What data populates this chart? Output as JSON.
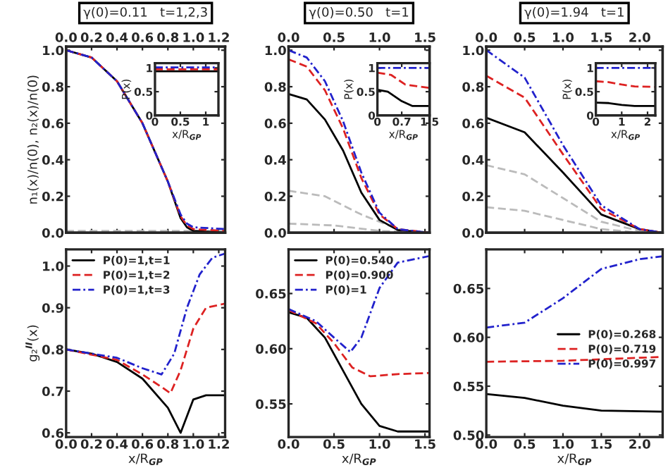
{
  "chart_data": [
    {
      "type": "line",
      "title": "γ(0)=0.11   t=1,2,3",
      "ylabel": "n₁(x)/n(0), n₂(x)/n(0)",
      "tick_labels": "y",
      "xlim": [
        0,
        1.25
      ],
      "xticks": [
        {
          "value": 0,
          "label": null
        },
        {
          "value": 0.2,
          "label": null
        },
        {
          "value": 0.4,
          "label": null
        },
        {
          "value": 0.6,
          "label": null
        },
        {
          "value": 0.8,
          "label": null
        },
        {
          "value": 1,
          "label": null
        },
        {
          "value": 1.2,
          "label": null
        }
      ],
      "x2lim": [
        0,
        1.25
      ],
      "x2ticks": [
        {
          "value": 0,
          "label": "0.0"
        },
        0.2,
        0.4,
        0.6,
        0.8,
        {
          "value": 1,
          "label": "1.0"
        },
        {
          "value": 1.2,
          "label": "1.2"
        }
      ],
      "ylim": [
        0,
        1.02
      ],
      "yticks": [
        {
          "value": 0,
          "label": "0.0"
        },
        0.2,
        0.4,
        0.6,
        0.8,
        {
          "value": 1,
          "label": "1.0"
        }
      ],
      "grid": false,
      "legend": false,
      "series": [
        {
          "color": "#bbbbbb",
          "line_style": "dashed",
          "x": [
            0,
            0.4,
            0.8,
            1.25
          ],
          "values": [
            0.01,
            0.01,
            0.01,
            0.01
          ]
        },
        {
          "color": "#000000",
          "line_style": "solid",
          "x": [
            0,
            0.2,
            0.4,
            0.6,
            0.8,
            0.9,
            0.95,
            1.0,
            1.25
          ],
          "values": [
            1.0,
            0.96,
            0.83,
            0.6,
            0.28,
            0.08,
            0.03,
            0.01,
            0.0
          ]
        },
        {
          "color": "#dd2222",
          "line_style": "dashed",
          "x": [
            0,
            0.2,
            0.4,
            0.6,
            0.8,
            0.9,
            0.95,
            1.0,
            1.25
          ],
          "values": [
            1.0,
            0.96,
            0.83,
            0.6,
            0.28,
            0.09,
            0.04,
            0.02,
            0.01
          ]
        },
        {
          "color": "#2222cc",
          "line_style": "dotted",
          "x": [
            0,
            0.2,
            0.4,
            0.6,
            0.8,
            0.9,
            0.95,
            1.0,
            1.25
          ],
          "values": [
            1.0,
            0.96,
            0.83,
            0.6,
            0.28,
            0.1,
            0.05,
            0.03,
            0.02
          ]
        }
      ]
    },
    {
      "type": "line",
      "xlabel": "x/R$_{GP}$",
      "ylabel": "P(x)",
      "xlim": [
        0,
        1.25
      ],
      "xticks": [
        0,
        0.5,
        1
      ],
      "ylim": [
        0,
        1.1
      ],
      "yticks": [
        0,
        0.5,
        1
      ],
      "grid": false,
      "legend": false,
      "series": [
        {
          "color": "#000000",
          "line_style": "solid",
          "x": [
            0,
            1.25
          ],
          "values": [
            0.93,
            0.93
          ]
        },
        {
          "color": "#dd2222",
          "line_style": "dashed",
          "x": [
            0,
            1.25
          ],
          "values": [
            0.97,
            0.97
          ]
        },
        {
          "color": "#2222cc",
          "line_style": "dotted",
          "x": [
            0,
            1.25
          ],
          "values": [
            1.01,
            1.01
          ]
        }
      ]
    },
    {
      "type": "line",
      "title": "γ(0)=0.50   t=1",
      "tick_labels": "y",
      "xlim": [
        0,
        1.55
      ],
      "xticks": [
        {
          "value": 0,
          "label": null
        },
        {
          "value": 0.5,
          "label": null
        },
        {
          "value": 1,
          "label": null
        },
        {
          "value": 1.5,
          "label": null
        }
      ],
      "x2lim": [
        0,
        1.55
      ],
      "x2ticks": [
        {
          "value": 0,
          "label": "0.0"
        },
        0.5,
        {
          "value": 1,
          "label": "1.0"
        },
        1.5
      ],
      "ylim": [
        0,
        1.02
      ],
      "yticks": [
        {
          "value": 0,
          "label": "0.0"
        },
        0.2,
        0.4,
        0.6,
        0.8,
        {
          "value": 1,
          "label": "1.0"
        }
      ],
      "grid": false,
      "legend": false,
      "series": [
        {
          "color": "#bbbbbb",
          "line_style": "dashed",
          "x": [
            0,
            0.4,
            0.8,
            1.2,
            1.55
          ],
          "values": [
            0.23,
            0.2,
            0.1,
            0.02,
            0.0
          ]
        },
        {
          "color": "#bbbbbb",
          "line_style": "dashed",
          "x": [
            0,
            0.5,
            1.0,
            1.55
          ],
          "values": [
            0.05,
            0.04,
            0.01,
            0.0
          ]
        },
        {
          "color": "#000000",
          "line_style": "solid",
          "x": [
            0,
            0.2,
            0.4,
            0.6,
            0.8,
            1.0,
            1.2,
            1.55
          ],
          "values": [
            0.76,
            0.73,
            0.62,
            0.45,
            0.22,
            0.07,
            0.015,
            0.0
          ]
        },
        {
          "color": "#dd2222",
          "line_style": "dashed",
          "x": [
            0,
            0.2,
            0.4,
            0.6,
            0.8,
            1.0,
            1.2,
            1.55
          ],
          "values": [
            0.95,
            0.91,
            0.78,
            0.57,
            0.3,
            0.1,
            0.02,
            0.0
          ]
        },
        {
          "color": "#2222cc",
          "line_style": "dotted",
          "x": [
            0,
            0.2,
            0.4,
            0.6,
            0.8,
            1.0,
            1.2,
            1.55
          ],
          "values": [
            1.0,
            0.96,
            0.83,
            0.61,
            0.33,
            0.11,
            0.02,
            0.0
          ]
        }
      ]
    },
    {
      "type": "line",
      "xlabel": "x/R$_{GP}$",
      "ylabel": "P(x)",
      "xlim": [
        0,
        1.5
      ],
      "xticks": [
        0,
        0.7,
        1.5
      ],
      "ylim": [
        0,
        1.1
      ],
      "yticks": [
        0,
        0.5,
        1
      ],
      "grid": false,
      "legend": false,
      "series": [
        {
          "color": "#000000",
          "line_style": "solid",
          "x": [
            0,
            0.3,
            0.7,
            1.0,
            1.5
          ],
          "values": [
            0.54,
            0.5,
            0.3,
            0.2,
            0.2
          ]
        },
        {
          "color": "#dd2222",
          "line_style": "dashed",
          "x": [
            0,
            0.4,
            0.8,
            1.5
          ],
          "values": [
            0.9,
            0.85,
            0.65,
            0.58
          ]
        },
        {
          "color": "#2222cc",
          "line_style": "dotted",
          "x": [
            0,
            1.5
          ],
          "values": [
            1.0,
            1.0
          ]
        }
      ]
    },
    {
      "type": "line",
      "title": "γ(0)=1.94   t=1",
      "tick_labels": "y",
      "xlim": [
        0,
        2.3
      ],
      "xticks": [
        {
          "value": 0,
          "label": null
        },
        {
          "value": 0.5,
          "label": null
        },
        {
          "value": 1,
          "label": null
        },
        {
          "value": 1.5,
          "label": null
        },
        {
          "value": 2,
          "label": null
        }
      ],
      "x2lim": [
        0,
        2.3
      ],
      "x2ticks": [
        {
          "value": 0,
          "label": "0.0"
        },
        0.5,
        {
          "value": 1,
          "label": "1.0"
        },
        1.5,
        {
          "value": 2,
          "label": "2.0"
        }
      ],
      "ylim": [
        0,
        1.02
      ],
      "yticks": [
        {
          "value": 0,
          "label": "0.0"
        },
        0.2,
        0.4,
        0.6,
        0.8,
        {
          "value": 1,
          "label": "1.0"
        }
      ],
      "grid": false,
      "legend": false,
      "series": [
        {
          "color": "#bbbbbb",
          "line_style": "dashed",
          "x": [
            0,
            0.5,
            1.0,
            1.5,
            2.0,
            2.3
          ],
          "values": [
            0.37,
            0.32,
            0.19,
            0.06,
            0.01,
            0.0
          ]
        },
        {
          "color": "#bbbbbb",
          "line_style": "dashed",
          "x": [
            0,
            0.5,
            1.0,
            1.5,
            2.0,
            2.3
          ],
          "values": [
            0.14,
            0.12,
            0.07,
            0.02,
            0.0,
            0.0
          ]
        },
        {
          "color": "#000000",
          "line_style": "solid",
          "x": [
            0,
            0.5,
            1.0,
            1.5,
            2.0,
            2.3
          ],
          "values": [
            0.63,
            0.55,
            0.33,
            0.1,
            0.02,
            0.0
          ]
        },
        {
          "color": "#dd2222",
          "line_style": "dashed",
          "x": [
            0,
            0.5,
            1.0,
            1.5,
            2.0,
            2.3
          ],
          "values": [
            0.86,
            0.74,
            0.43,
            0.13,
            0.02,
            0.0
          ]
        },
        {
          "color": "#2222cc",
          "line_style": "dotted",
          "x": [
            0,
            0.5,
            1.0,
            1.5,
            2.0,
            2.3
          ],
          "values": [
            1.0,
            0.85,
            0.48,
            0.15,
            0.02,
            0.0
          ]
        }
      ]
    },
    {
      "type": "line",
      "xlabel": "x/R$_{GP}$",
      "ylabel": "P(x)",
      "xlim": [
        0,
        2.3
      ],
      "xticks": [
        0,
        1,
        2
      ],
      "ylim": [
        0,
        1.1
      ],
      "yticks": [
        0,
        0.5,
        1
      ],
      "grid": false,
      "legend": false,
      "series": [
        {
          "color": "#000000",
          "line_style": "solid",
          "x": [
            0,
            0.5,
            1.0,
            1.5,
            2.3
          ],
          "values": [
            0.27,
            0.26,
            0.22,
            0.2,
            0.2
          ]
        },
        {
          "color": "#dd2222",
          "line_style": "dashed",
          "x": [
            0,
            0.5,
            1.0,
            1.5,
            2.3
          ],
          "values": [
            0.72,
            0.7,
            0.65,
            0.61,
            0.6
          ]
        },
        {
          "color": "#2222cc",
          "line_style": "dotted",
          "x": [
            0,
            2.3
          ],
          "values": [
            1.0,
            1.0
          ]
        }
      ]
    },
    {
      "type": "line",
      "xlabel": "x/R$_{GP}$",
      "ylabel": "g₂$^{II}$(x)",
      "xlim": [
        0,
        1.25
      ],
      "xticks": [
        {
          "value": 0,
          "label": "0.0"
        },
        0.2,
        0.4,
        0.6,
        0.8,
        {
          "value": 1,
          "label": "1.0"
        },
        {
          "value": 1.2,
          "label": "1.2"
        }
      ],
      "ylim": [
        0.59,
        1.04
      ],
      "yticks": [
        0.6,
        0.7,
        0.8,
        0.9,
        {
          "value": 1,
          "label": "1.0"
        }
      ],
      "grid": false,
      "legend": "top left",
      "series": [
        {
          "name": "P(0)=1,t=1",
          "color": "#000000",
          "line_style": "solid",
          "x": [
            0,
            0.2,
            0.4,
            0.6,
            0.8,
            0.85,
            0.9,
            0.95,
            1.0,
            1.1,
            1.25
          ],
          "values": [
            0.8,
            0.79,
            0.77,
            0.73,
            0.66,
            0.63,
            0.6,
            0.64,
            0.68,
            0.69,
            0.69
          ]
        },
        {
          "name": "P(0)=1,t=2",
          "color": "#dd2222",
          "line_style": "dashed",
          "x": [
            0,
            0.4,
            0.6,
            0.75,
            0.82,
            0.9,
            1.0,
            1.1,
            1.25
          ],
          "values": [
            0.8,
            0.775,
            0.74,
            0.71,
            0.695,
            0.75,
            0.85,
            0.9,
            0.91
          ]
        },
        {
          "name": "P(0)=1,t=3",
          "color": "#2222cc",
          "line_style": "dotted",
          "x": [
            0,
            0.4,
            0.6,
            0.75,
            0.85,
            0.95,
            1.05,
            1.15,
            1.25
          ],
          "values": [
            0.8,
            0.78,
            0.755,
            0.74,
            0.79,
            0.9,
            0.98,
            1.02,
            1.03
          ]
        }
      ]
    },
    {
      "type": "line",
      "xlabel": "x/R$_{GP}$",
      "xlim": [
        0,
        1.55
      ],
      "xticks": [
        {
          "value": 0,
          "label": "0.0"
        },
        0.5,
        {
          "value": 1,
          "label": "1.0"
        },
        1.5
      ],
      "ylim": [
        0.52,
        0.69
      ],
      "yticks": [
        0.55,
        {
          "value": 0.6,
          "label": "0.60"
        },
        0.65
      ],
      "grid": false,
      "legend": "top left",
      "series": [
        {
          "name": "P(0)=0.540",
          "color": "#000000",
          "line_style": "solid",
          "x": [
            0,
            0.2,
            0.4,
            0.6,
            0.8,
            1.0,
            1.2,
            1.55
          ],
          "values": [
            0.633,
            0.628,
            0.61,
            0.58,
            0.55,
            0.53,
            0.525,
            0.525
          ]
        },
        {
          "name": "P(0)=0.900",
          "color": "#dd2222",
          "line_style": "dashed",
          "x": [
            0,
            0.3,
            0.5,
            0.7,
            0.9,
            1.2,
            1.55
          ],
          "values": [
            0.635,
            0.623,
            0.605,
            0.583,
            0.575,
            0.577,
            0.578
          ]
        },
        {
          "name": "P(0)=1",
          "color": "#2222cc",
          "line_style": "dotted",
          "x": [
            0,
            0.3,
            0.5,
            0.68,
            0.8,
            1.0,
            1.2,
            1.55
          ],
          "values": [
            0.636,
            0.625,
            0.61,
            0.597,
            0.61,
            0.655,
            0.678,
            0.684
          ]
        }
      ]
    },
    {
      "type": "line",
      "xlabel": "x/R$_{GP}$",
      "xlim": [
        0,
        2.3
      ],
      "xticks": [
        {
          "value": 0,
          "label": "0.0"
        },
        0.5,
        {
          "value": 1,
          "label": "1.0"
        },
        1.5,
        {
          "value": 2,
          "label": "2.0"
        }
      ],
      "ylim": [
        0.498,
        0.69
      ],
      "yticks": [
        {
          "value": 0.5,
          "label": "0.50"
        },
        0.55,
        {
          "value": 0.6,
          "label": "0.60"
        },
        0.65
      ],
      "grid": false,
      "legend": "center right",
      "series": [
        {
          "name": "P(0)=0.268",
          "color": "#000000",
          "line_style": "solid",
          "x": [
            0,
            0.5,
            1.0,
            1.5,
            2.3
          ],
          "values": [
            0.542,
            0.538,
            0.53,
            0.525,
            0.524
          ]
        },
        {
          "name": "P(0)=0.719",
          "color": "#dd2222",
          "line_style": "dashed",
          "x": [
            0,
            1.0,
            2.3
          ],
          "values": [
            0.575,
            0.576,
            0.58
          ]
        },
        {
          "name": "P(0)=0.997",
          "color": "#2222cc",
          "line_style": "dotted",
          "x": [
            0,
            0.5,
            1.0,
            1.5,
            2.0,
            2.3
          ],
          "values": [
            0.61,
            0.615,
            0.64,
            0.67,
            0.68,
            0.683
          ]
        }
      ]
    }
  ]
}
